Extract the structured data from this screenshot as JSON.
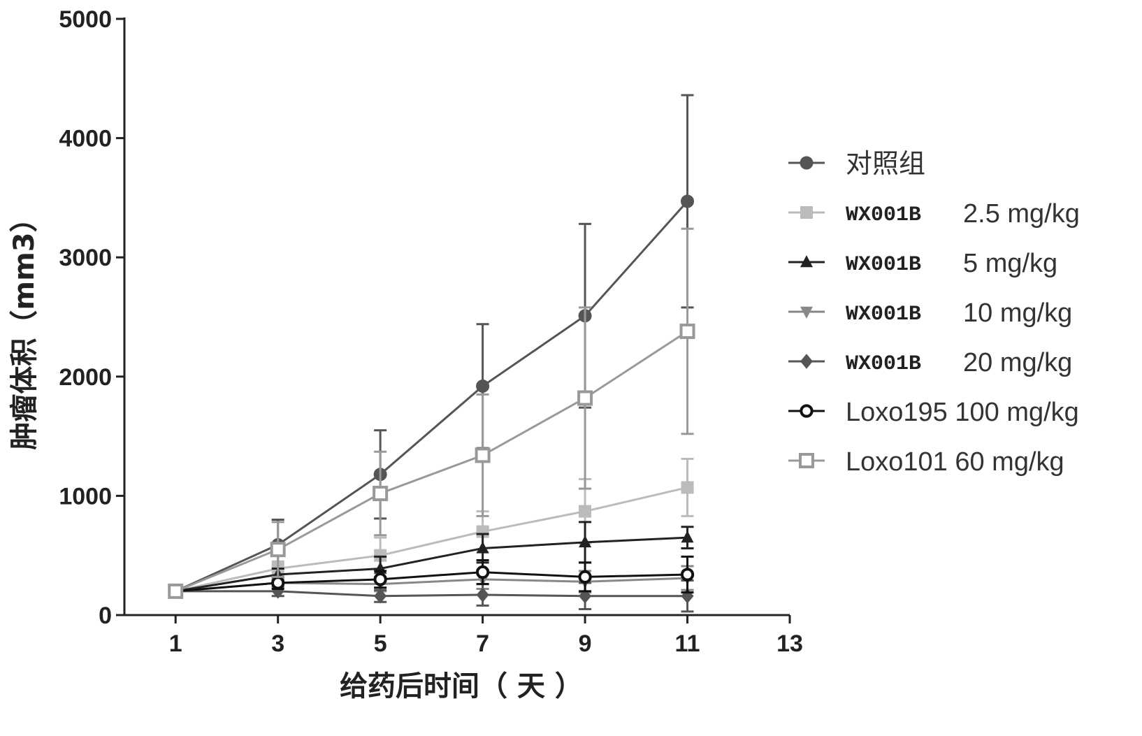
{
  "chart_data": {
    "type": "line",
    "title": "",
    "xlabel": "给药后时间（ 天 ）",
    "ylabel": "肿瘤体积（mm3）",
    "xlim": [
      0,
      13
    ],
    "ylim": [
      0,
      5000
    ],
    "xticks": [
      1,
      3,
      5,
      7,
      9,
      11,
      13
    ],
    "yticks": [
      0,
      1000,
      2000,
      3000,
      4000,
      5000
    ],
    "x": [
      1,
      3,
      5,
      7,
      9,
      11
    ],
    "legend_position": "right",
    "grid": false,
    "series": [
      {
        "name": "对照组",
        "name_parts": [
          "对照组",
          ""
        ],
        "marker": "circle",
        "color": "#555555",
        "values": [
          200,
          590,
          1180,
          1920,
          2510,
          3470
        ],
        "errors": [
          0,
          210,
          370,
          520,
          770,
          890
        ]
      },
      {
        "name": "WX001B 2.5 mg/kg",
        "name_parts": [
          "WX001B",
          "2.5 mg/kg"
        ],
        "marker": "square",
        "color": "#bbbbbb",
        "values": [
          200,
          390,
          500,
          700,
          870,
          1070
        ],
        "errors": [
          0,
          60,
          150,
          170,
          270,
          240
        ]
      },
      {
        "name": "WX001B 5 mg/kg",
        "name_parts": [
          "WX001B",
          "5 mg/kg"
        ],
        "marker": "triangle",
        "color": "#222222",
        "values": [
          200,
          340,
          390,
          560,
          610,
          650
        ],
        "errors": [
          0,
          50,
          100,
          120,
          170,
          90
        ]
      },
      {
        "name": "WX001B 10 mg/kg",
        "name_parts": [
          "WX001B",
          "10 mg/kg"
        ],
        "marker": "triangle-down",
        "color": "#888888",
        "values": [
          200,
          270,
          260,
          300,
          280,
          310
        ],
        "errors": [
          0,
          40,
          60,
          80,
          90,
          100
        ]
      },
      {
        "name": "WX001B 20 mg/kg",
        "name_parts": [
          "WX001B",
          "20 mg/kg"
        ],
        "marker": "diamond",
        "color": "#555555",
        "values": [
          200,
          200,
          160,
          170,
          160,
          160
        ],
        "errors": [
          0,
          40,
          50,
          90,
          110,
          130
        ]
      },
      {
        "name": "Loxo195 100 mg/kg",
        "name_parts": [
          "Loxo195 100 mg/kg",
          ""
        ],
        "marker": "circle-open",
        "color": "#111111",
        "values": [
          200,
          270,
          300,
          360,
          320,
          340
        ],
        "errors": [
          0,
          50,
          70,
          100,
          120,
          150
        ]
      },
      {
        "name": "Loxo101 60 mg/kg",
        "name_parts": [
          "Loxo101 60 mg/kg",
          ""
        ],
        "marker": "square-open",
        "color": "#999999",
        "values": [
          200,
          550,
          1020,
          1340,
          1820,
          2380
        ],
        "errors": [
          0,
          230,
          350,
          510,
          760,
          860
        ]
      }
    ]
  }
}
